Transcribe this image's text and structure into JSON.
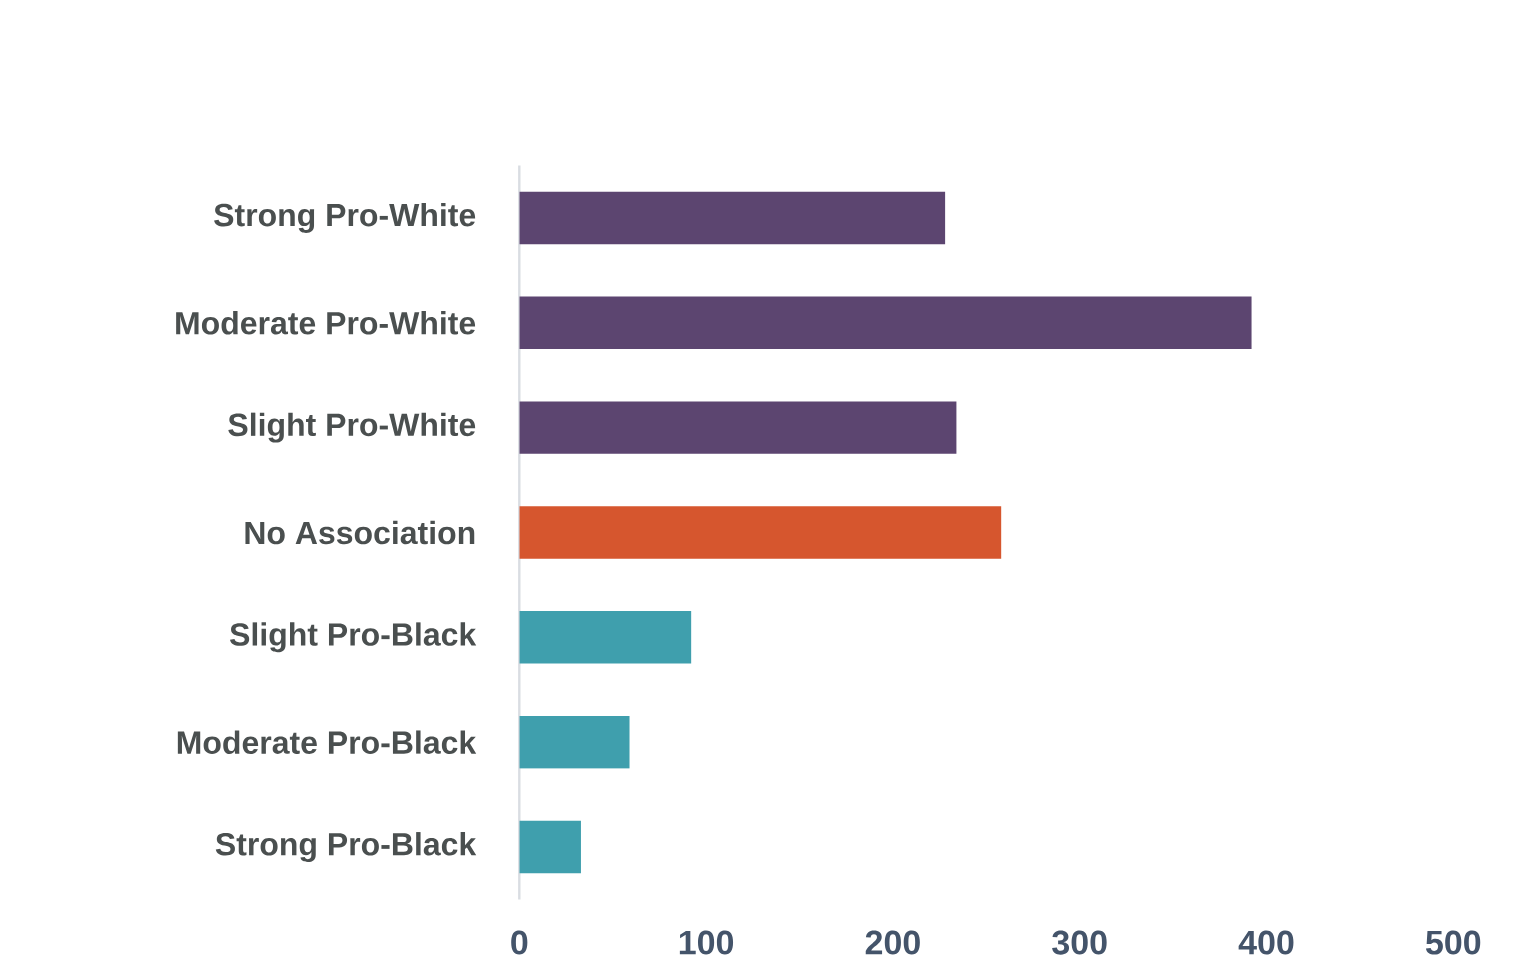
{
  "chart_data": {
    "type": "bar",
    "orientation": "horizontal",
    "categories": [
      "Strong Pro-White",
      "Moderate Pro-White",
      "Slight Pro-White",
      "No Association",
      "Slight Pro-Black",
      "Moderate Pro-Black",
      "Strong Pro-Black"
    ],
    "values": [
      228,
      392,
      234,
      258,
      92,
      59,
      33
    ],
    "colors": [
      "#5c4570",
      "#5c4570",
      "#5c4570",
      "#d6562e",
      "#3f9fad",
      "#3f9fad",
      "#3f9fad"
    ],
    "xlim": [
      0,
      500
    ],
    "xticks": [
      0,
      100,
      200,
      300,
      400,
      500
    ]
  }
}
